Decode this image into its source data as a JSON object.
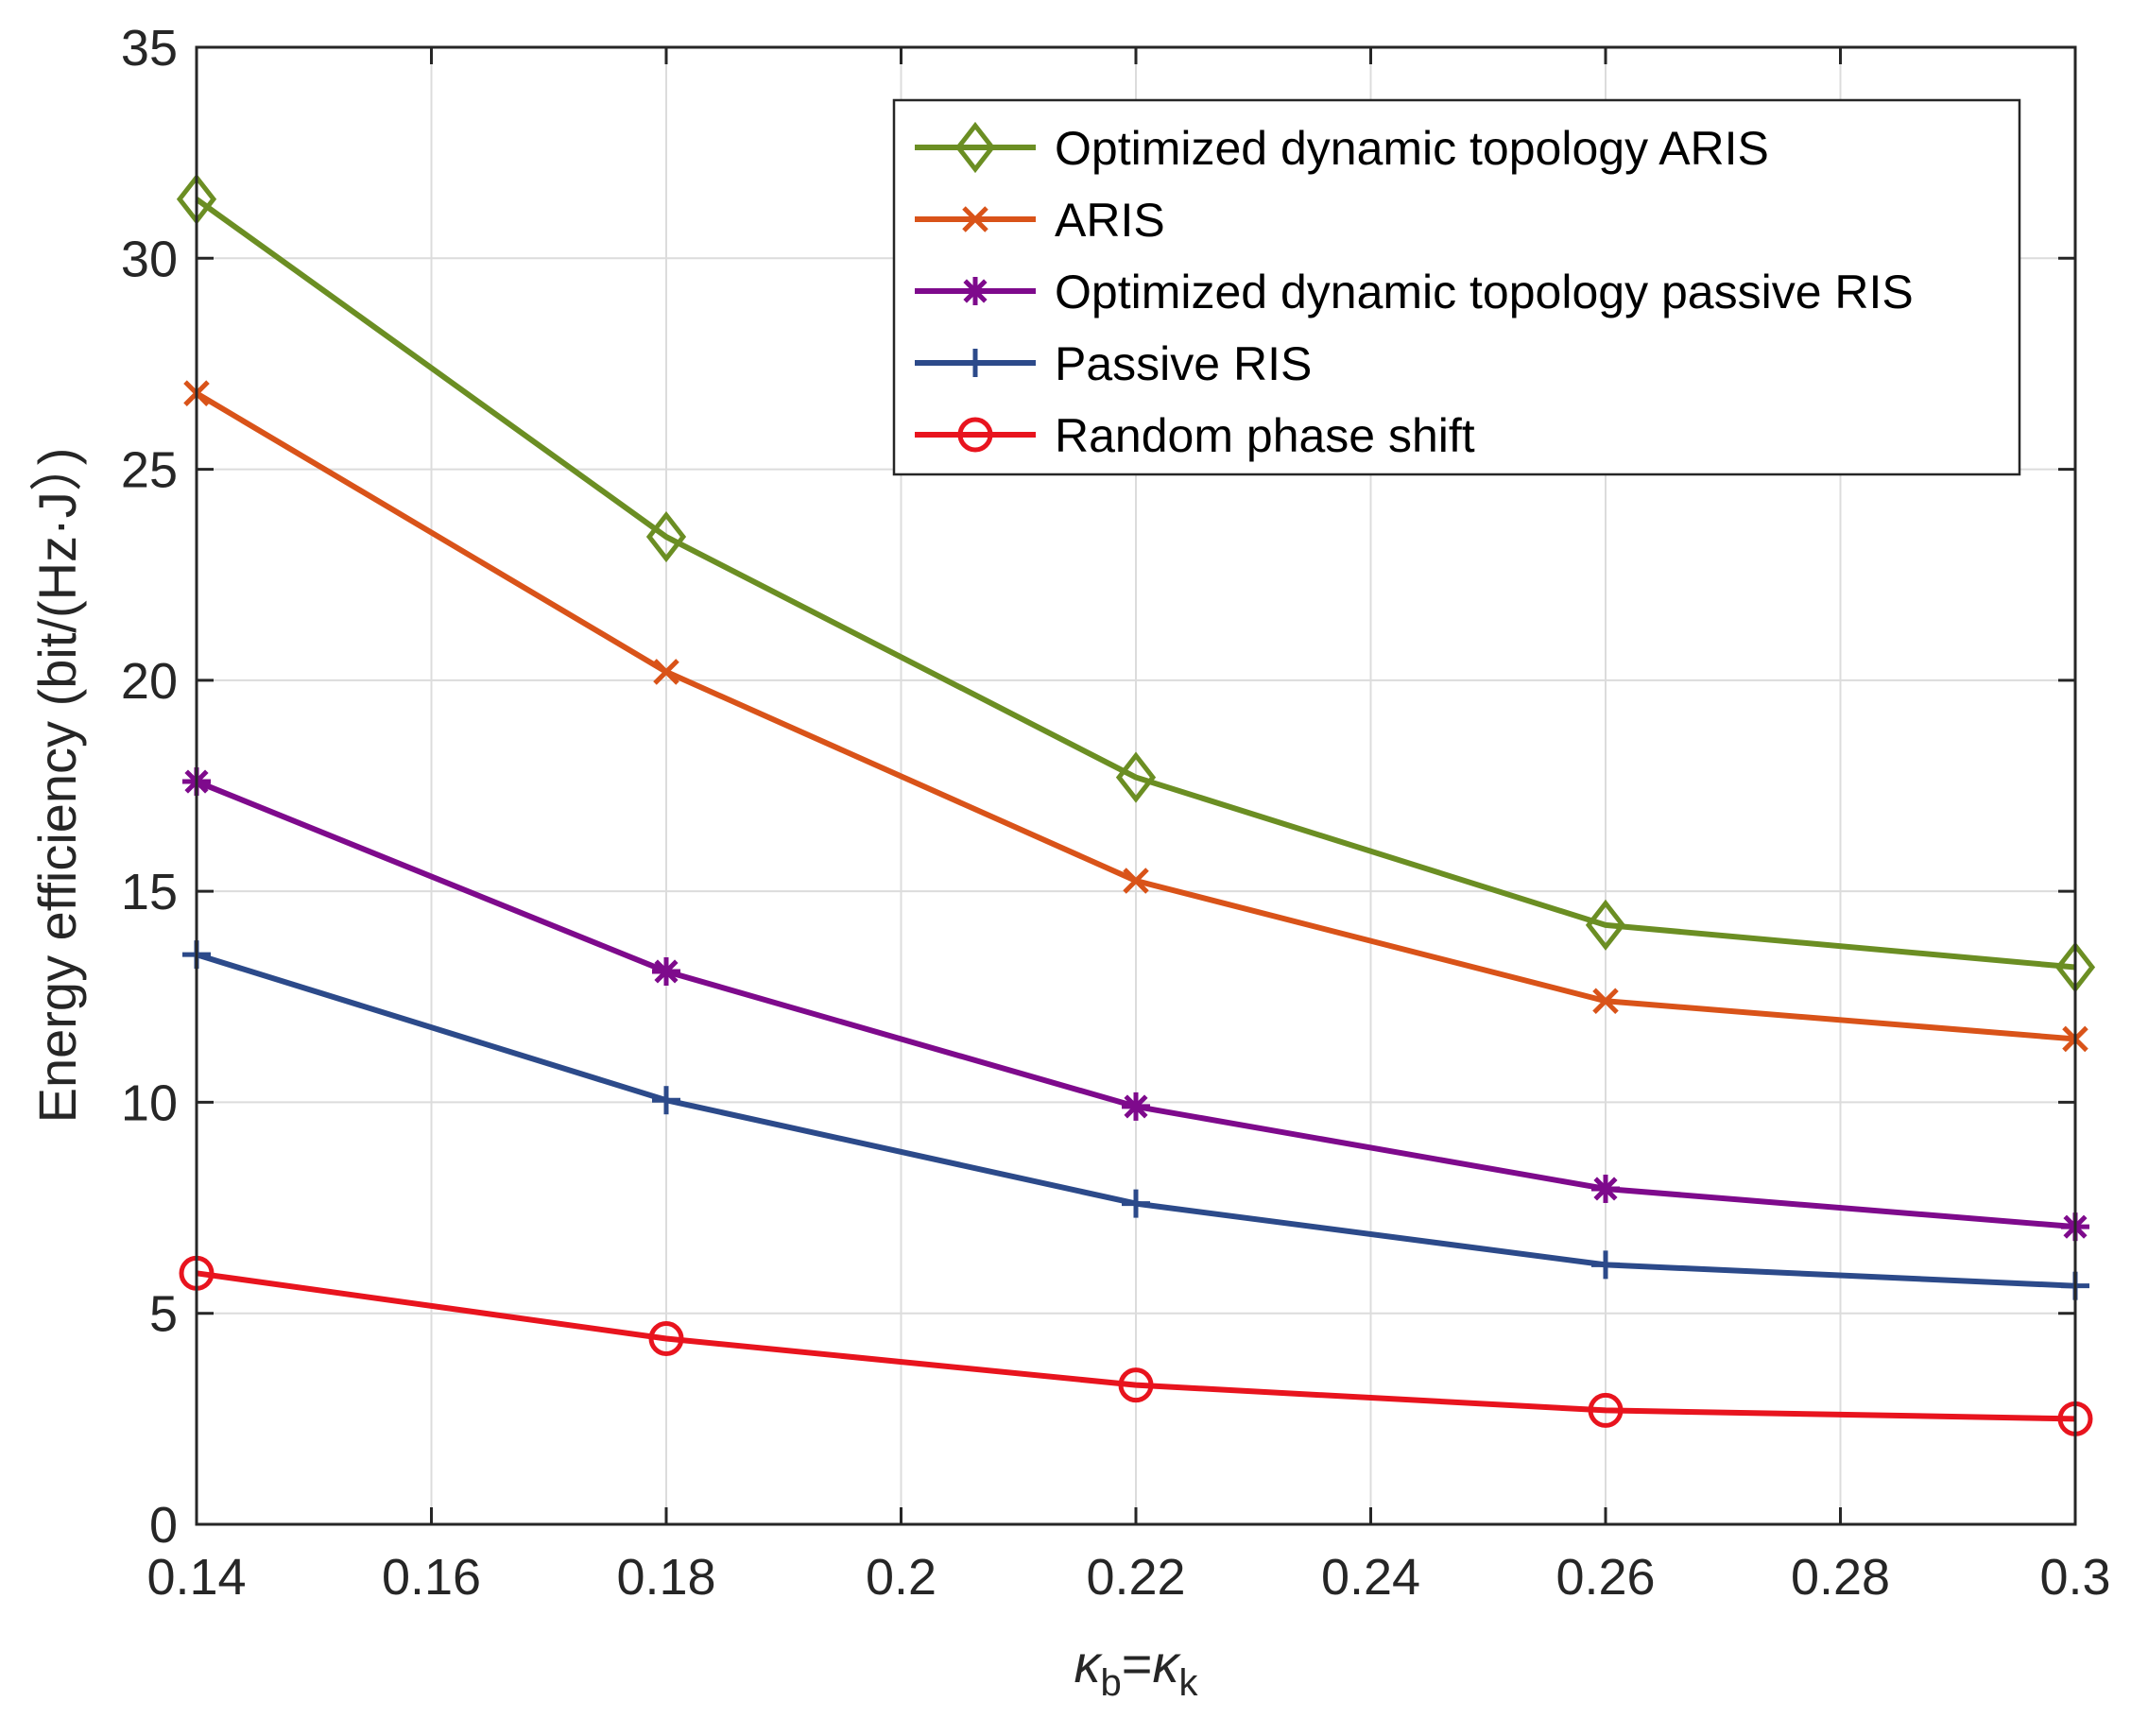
{
  "chart_data": {
    "type": "line",
    "title": "",
    "xlabel": {
      "main1": "κ",
      "sub1": "b",
      "eq": "=",
      "main2": "κ",
      "sub2": "k"
    },
    "ylabel": "Energy efficiency (bit/(Hz·J）)",
    "xlim": [
      0.14,
      0.3
    ],
    "ylim": [
      0,
      35
    ],
    "xticks": [
      0.14,
      0.16,
      0.18,
      0.2,
      0.22,
      0.24,
      0.26,
      0.28,
      0.3
    ],
    "xtick_labels": [
      "0.14",
      "0.16",
      "0.18",
      "0.2",
      "0.22",
      "0.24",
      "0.26",
      "0.28",
      "0.3"
    ],
    "yticks": [
      0,
      5,
      10,
      15,
      20,
      25,
      30,
      35
    ],
    "ytick_labels": [
      "0",
      "5",
      "10",
      "15",
      "20",
      "25",
      "30",
      "35"
    ],
    "grid": true,
    "legend_position": "top-right",
    "x": [
      0.14,
      0.18,
      0.22,
      0.26,
      0.3
    ],
    "series": [
      {
        "name": "Optimized dynamic topology ARIS",
        "color": "#6b8e23",
        "marker": "diamond",
        "values": [
          31.4,
          23.4,
          17.7,
          14.2,
          13.2
        ]
      },
      {
        "name": "ARIS",
        "color": "#d95319",
        "marker": "x",
        "values": [
          26.8,
          20.2,
          15.25,
          12.4,
          11.5
        ]
      },
      {
        "name": "Optimized dynamic topology passive RIS",
        "color": "#7e0a8c",
        "marker": "star",
        "values": [
          17.6,
          13.1,
          9.9,
          7.95,
          7.05
        ]
      },
      {
        "name": "Passive RIS",
        "color": "#2c4a8a",
        "marker": "plus",
        "values": [
          13.5,
          10.05,
          7.6,
          6.15,
          5.65
        ]
      },
      {
        "name": "Random phase shift",
        "color": "#e8141e",
        "marker": "circle",
        "values": [
          5.95,
          4.4,
          3.3,
          2.7,
          2.5
        ]
      }
    ]
  }
}
